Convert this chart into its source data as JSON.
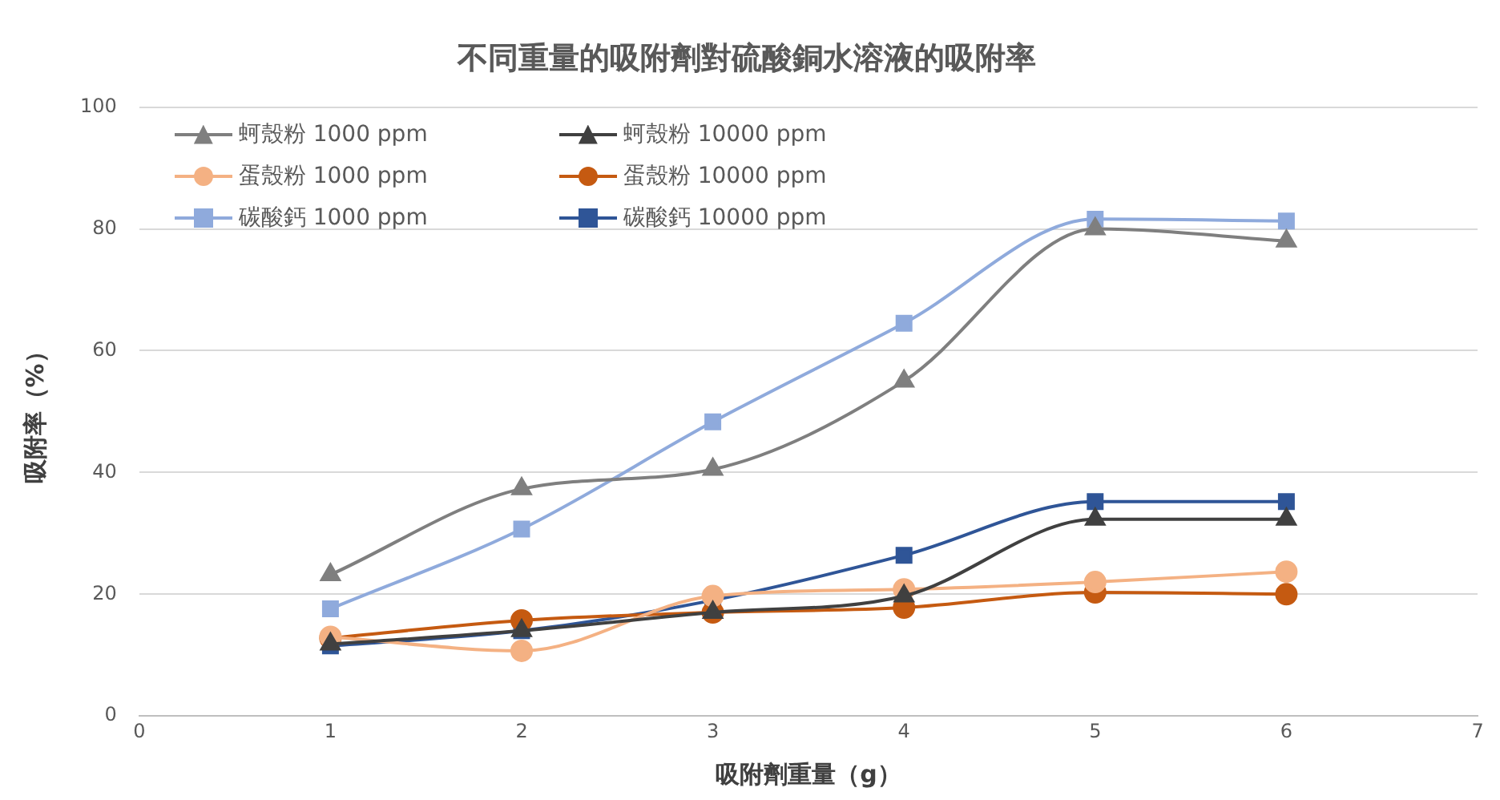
{
  "chart_data": {
    "type": "line",
    "title": "不同重量的吸附劑對硫酸銅水溶液的吸附率",
    "xlabel": "吸附劑重量（g）",
    "ylabel": "吸附率（%）",
    "x": [
      1,
      2,
      3,
      4,
      5,
      6
    ],
    "xlim": [
      0,
      7
    ],
    "xticks": [
      0,
      1,
      2,
      3,
      4,
      5,
      6,
      7
    ],
    "ylim": [
      0,
      100
    ],
    "yticks": [
      0,
      20,
      40,
      60,
      80,
      100
    ],
    "grid": "y",
    "legend": "top left",
    "series": [
      {
        "name": "蚵殼粉 1000 ppm",
        "color": "#7f7f7f",
        "marker": "triangle",
        "values": [
          23.2,
          37.3,
          40.5,
          55,
          80,
          78
        ]
      },
      {
        "name": "蚵殼粉 10000 ppm",
        "color": "#404040",
        "marker": "triangle",
        "values": [
          11.8,
          14,
          17,
          19.7,
          32.3,
          32.3
        ]
      },
      {
        "name": "蛋殼粉 1000 ppm",
        "color": "#f4b183",
        "marker": "circle",
        "values": [
          13,
          10.7,
          19.7,
          20.8,
          22,
          23.7
        ]
      },
      {
        "name": "蛋殼粉 10000 ppm",
        "color": "#c55a11",
        "marker": "circle",
        "values": [
          12.8,
          15.7,
          17,
          17.8,
          20.3,
          20
        ]
      },
      {
        "name": "碳酸鈣 1000 ppm",
        "color": "#8faadc",
        "marker": "square",
        "values": [
          17.6,
          30.7,
          48.3,
          64.5,
          81.6,
          81.3
        ]
      },
      {
        "name": "碳酸鈣 10000 ppm",
        "color": "#2f5597",
        "marker": "square",
        "values": [
          11.5,
          14,
          19,
          26.4,
          35.2,
          35.2
        ]
      }
    ]
  }
}
